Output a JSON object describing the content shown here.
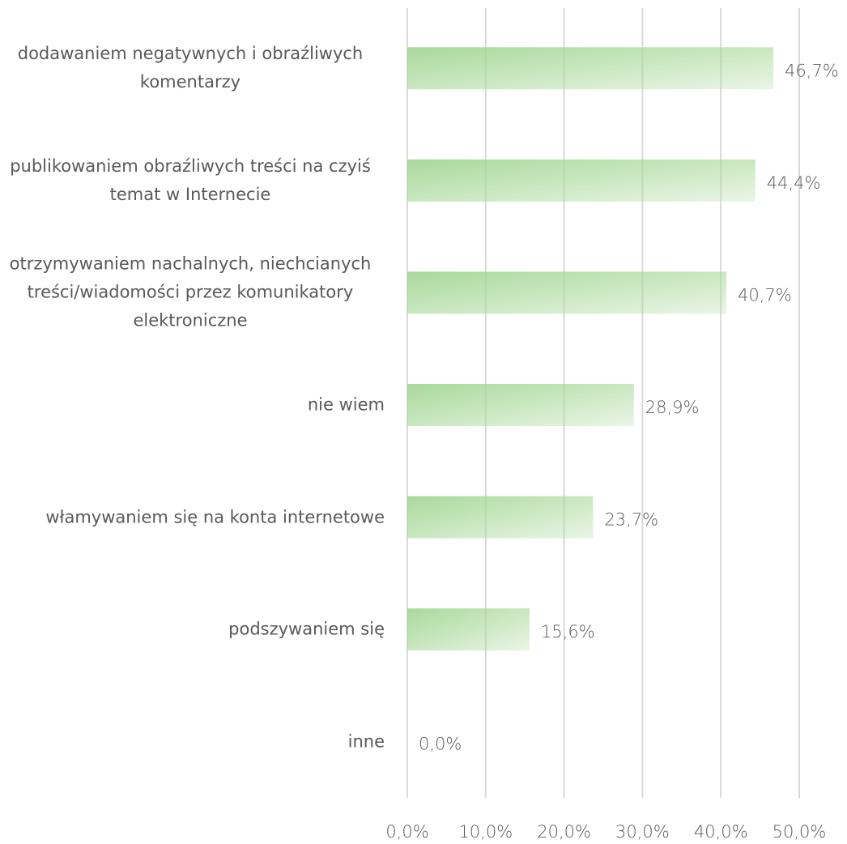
{
  "chart_data": {
    "type": "bar",
    "orientation": "horizontal",
    "categories": [
      "dodawaniem negatywnych i obraźliwych komentarzy",
      "publikowaniem obraźliwych treści na czyiś temat w Internecie",
      "otrzymywaniem nachalnych, niechcianych treści/wiadomości przez komunikatory elektroniczne",
      "nie wiem",
      "włamywaniem się na konta internetowe",
      "podszywaniem się",
      "inne"
    ],
    "values": [
      46.7,
      44.4,
      40.7,
      28.9,
      23.7,
      15.6,
      0.0
    ],
    "value_labels": [
      "46,7%",
      "44,4%",
      "40,7%",
      "28,9%",
      "23,7%",
      "15,6%",
      "0,0%"
    ],
    "color": "#a9d99a",
    "xlim": [
      0,
      50
    ],
    "xticks": [
      {
        "value": 0,
        "label": "0,0%"
      },
      {
        "value": 10,
        "label": "10,0%"
      },
      {
        "value": 20,
        "label": "20,0%"
      },
      {
        "value": 30,
        "label": "30,0%"
      },
      {
        "value": 40,
        "label": "40,0%"
      },
      {
        "value": 50,
        "label": "50,0%"
      }
    ],
    "grid": true
  }
}
